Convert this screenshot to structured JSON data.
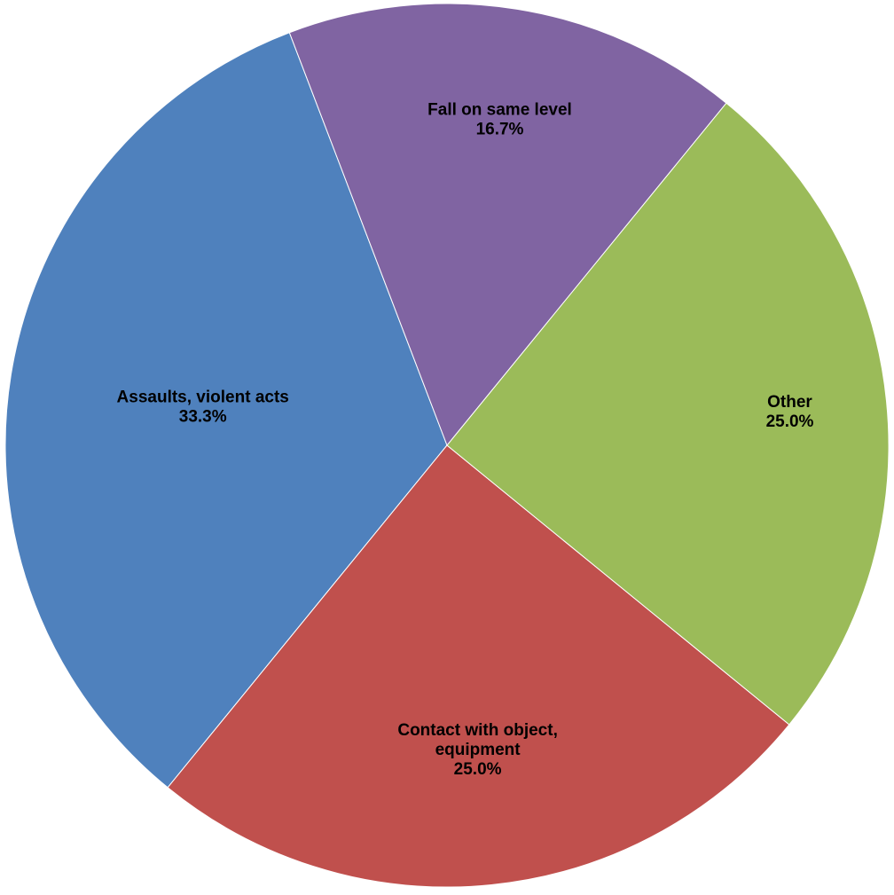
{
  "chart_data": {
    "type": "pie",
    "title": "",
    "start_angle_deg": 110.9,
    "direction": "counterclockwise",
    "slices": [
      {
        "label_lines": [
          "Assaults, violent acts"
        ],
        "percent_label": "33.3%",
        "value": 33.3,
        "color": "#4F81BD"
      },
      {
        "label_lines": [
          "Contact with object,",
          "equipment"
        ],
        "percent_label": "25.0%",
        "value": 25.0,
        "color": "#C0504D"
      },
      {
        "label_lines": [
          "Other"
        ],
        "percent_label": "25.0%",
        "value": 25.0,
        "color": "#9BBB59"
      },
      {
        "label_lines": [
          "Fall on same level"
        ],
        "percent_label": "16.7%",
        "value": 16.7,
        "color": "#8064A2"
      }
    ]
  }
}
